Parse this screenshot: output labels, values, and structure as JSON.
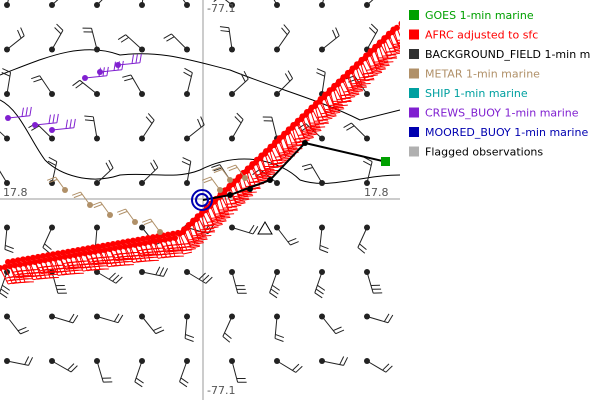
{
  "axes": {
    "top_label": "-77.1",
    "bottom_label": "-77.1",
    "left_label": "17.8",
    "right_label": "17.8"
  },
  "legend": [
    {
      "label": "GOES 1-min marine",
      "color": "#00a000",
      "text_color": "#00a000"
    },
    {
      "label": "AFRC adjusted to sfc",
      "color": "#ff0000",
      "text_color": "#ff0000"
    },
    {
      "label": "BACKGROUND_FIELD 1-min m",
      "color": "#303030",
      "text_color": "#000000"
    },
    {
      "label": "METAR 1-min marine",
      "color": "#b09068",
      "text_color": "#b09068"
    },
    {
      "label": "SHIP 1-min marine",
      "color": "#00a0a0",
      "text_color": "#00a0a0"
    },
    {
      "label": "CREWS_BUOY 1-min marine",
      "color": "#8020d0",
      "text_color": "#8020d0"
    },
    {
      "label": "MOORED_BUOY 1-min marine",
      "color": "#0000b0",
      "text_color": "#0000b0"
    },
    {
      "label": "Flagged observations",
      "color": "#b0b0b0",
      "text_color": "#000000"
    }
  ]
}
